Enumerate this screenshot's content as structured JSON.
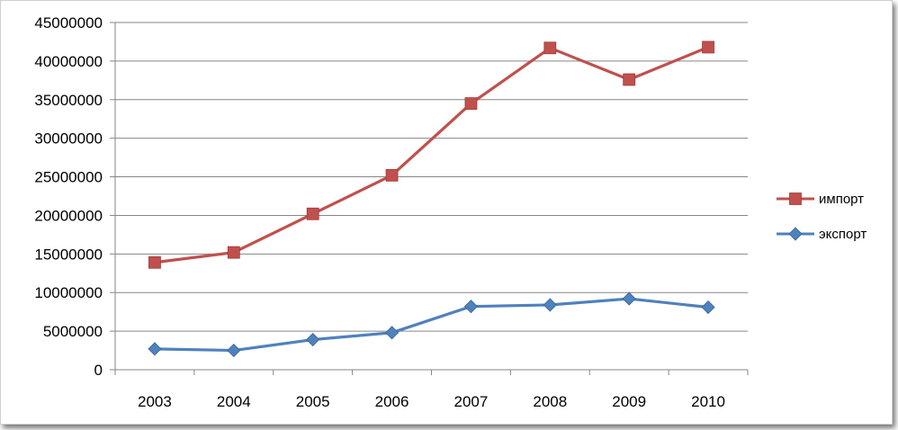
{
  "chart_data": {
    "type": "line",
    "categories": [
      "2003",
      "2004",
      "2005",
      "2006",
      "2007",
      "2008",
      "2009",
      "2010"
    ],
    "series": [
      {
        "name": "импорт",
        "color": "#c0504d",
        "marker": "square",
        "values": [
          13900000,
          15200000,
          20200000,
          25200000,
          34500000,
          41700000,
          37600000,
          41800000
        ]
      },
      {
        "name": "экспорт",
        "color": "#4f81bd",
        "marker": "diamond",
        "values": [
          2700000,
          2500000,
          3900000,
          4800000,
          8200000,
          8400000,
          9200000,
          8100000
        ]
      }
    ],
    "y_ticks": [
      "0",
      "5000000",
      "10000000",
      "15000000",
      "20000000",
      "25000000",
      "30000000",
      "35000000",
      "40000000",
      "45000000"
    ],
    "ylim": [
      0,
      45000000
    ],
    "grid": true,
    "legend_position": "right"
  }
}
